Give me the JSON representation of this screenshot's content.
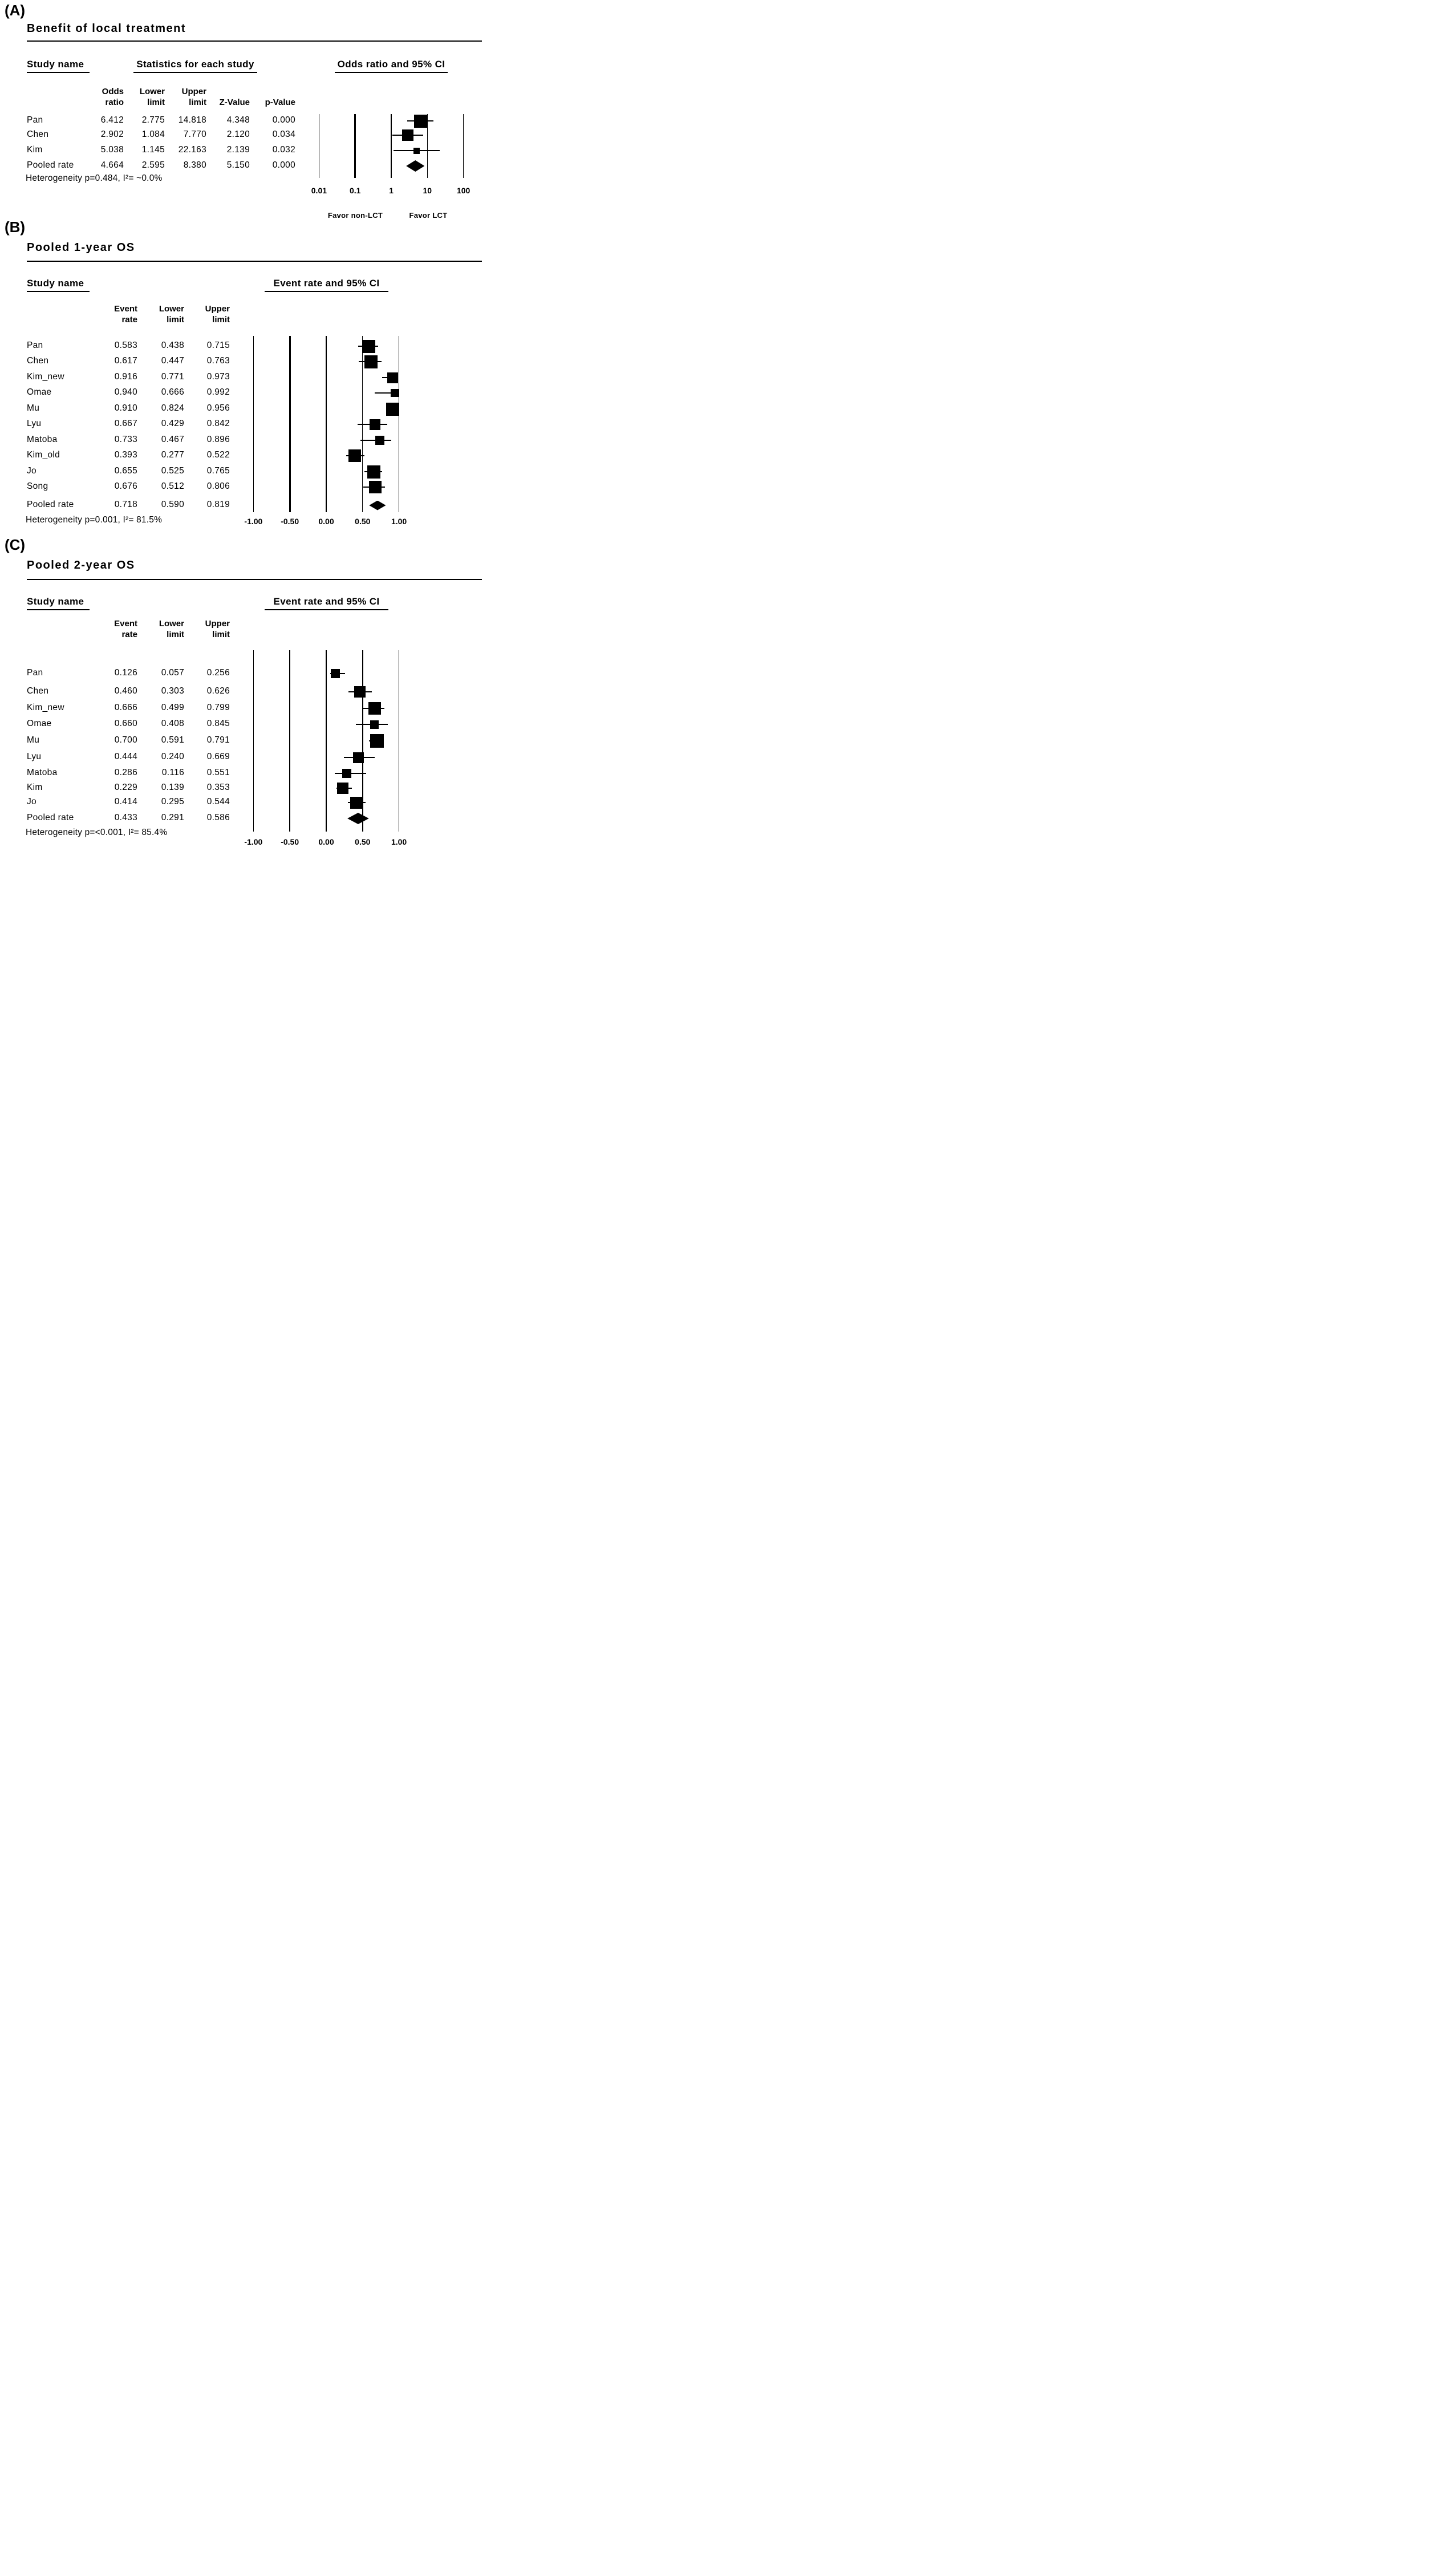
{
  "page": {
    "background": "#ffffff",
    "text_color": "#000000"
  },
  "chart_data": [
    {
      "type": "forest",
      "panel_label": "(A)",
      "title": "Benefit of local treatment",
      "study_header": "Study name",
      "stats_header": "Statistics for each study",
      "plot_header": "Odds ratio and 95% CI",
      "col_labels": [
        [
          "Odds",
          "ratio"
        ],
        [
          "Lower",
          "limit"
        ],
        [
          "Upper",
          "limit"
        ],
        [
          "",
          "Z-Value"
        ],
        [
          "",
          "p-Value"
        ]
      ],
      "axis": {
        "scale": "log",
        "min": 0.01,
        "max": 100
      },
      "xticks": [
        0.01,
        0.1,
        1,
        10,
        100
      ],
      "xtick_labels": [
        "0.01",
        "0.1",
        "1",
        "10",
        "100"
      ],
      "favor_labels": [
        "Favor non-LCT",
        "Favor LCT"
      ],
      "heterogeneity": "Heterogeneity p=0.484, I²= ~0.0%",
      "studies": [
        {
          "name": "Pan",
          "est": 6.412,
          "lo": 2.775,
          "hi": 14.818,
          "cells": [
            "6.412",
            "2.775",
            "14.818",
            "4.348",
            "0.000"
          ],
          "marker": "square",
          "size": 23
        },
        {
          "name": "Chen",
          "est": 2.902,
          "lo": 1.084,
          "hi": 7.77,
          "cells": [
            "2.902",
            "1.084",
            "7.770",
            "2.120",
            "0.034"
          ],
          "marker": "square",
          "size": 20
        },
        {
          "name": "Kim",
          "est": 5.038,
          "lo": 1.145,
          "hi": 22.163,
          "cells": [
            "5.038",
            "1.145",
            "22.163",
            "2.139",
            "0.032"
          ],
          "marker": "square",
          "size": 11
        },
        {
          "name": "Pooled rate",
          "est": 4.664,
          "lo": 2.595,
          "hi": 8.38,
          "cells": [
            "4.664",
            "2.595",
            "8.380",
            "5.150",
            "0.000"
          ],
          "marker": "diamond",
          "size": 20
        }
      ]
    },
    {
      "type": "forest",
      "panel_label": "(B)",
      "title": "Pooled 1-year OS",
      "study_header": "Study name",
      "plot_header": "Event rate and 95% CI",
      "col_labels": [
        [
          "Event",
          "rate"
        ],
        [
          "Lower",
          "limit"
        ],
        [
          "Upper",
          "limit"
        ]
      ],
      "axis": {
        "scale": "linear",
        "min": -1,
        "max": 1
      },
      "xticks": [
        -1,
        -0.5,
        0,
        0.5,
        1
      ],
      "xtick_labels": [
        "-1.00",
        "-0.50",
        "0.00",
        "0.50",
        "1.00"
      ],
      "heterogeneity": "Heterogeneity p=0.001, I²= 81.5%",
      "studies": [
        {
          "name": "Pan",
          "est": 0.583,
          "lo": 0.438,
          "hi": 0.715,
          "cells": [
            "0.583",
            "0.438",
            "0.715"
          ],
          "marker": "square",
          "size": 23
        },
        {
          "name": "Chen",
          "est": 0.617,
          "lo": 0.447,
          "hi": 0.763,
          "cells": [
            "0.617",
            "0.447",
            "0.763"
          ],
          "marker": "square",
          "size": 23
        },
        {
          "name": "Kim_new",
          "est": 0.916,
          "lo": 0.771,
          "hi": 0.973,
          "cells": [
            "0.916",
            "0.771",
            "0.973"
          ],
          "marker": "square",
          "size": 19
        },
        {
          "name": "Omae",
          "est": 0.94,
          "lo": 0.666,
          "hi": 0.992,
          "cells": [
            "0.940",
            "0.666",
            "0.992"
          ],
          "marker": "square",
          "size": 14
        },
        {
          "name": "Mu",
          "est": 0.91,
          "lo": 0.824,
          "hi": 0.956,
          "cells": [
            "0.910",
            "0.824",
            "0.956"
          ],
          "marker": "square",
          "size": 23
        },
        {
          "name": "Lyu",
          "est": 0.667,
          "lo": 0.429,
          "hi": 0.842,
          "cells": [
            "0.667",
            "0.429",
            "0.842"
          ],
          "marker": "square",
          "size": 19
        },
        {
          "name": "Matoba",
          "est": 0.733,
          "lo": 0.467,
          "hi": 0.896,
          "cells": [
            "0.733",
            "0.467",
            "0.896"
          ],
          "marker": "square",
          "size": 16
        },
        {
          "name": "Kim_old",
          "est": 0.393,
          "lo": 0.277,
          "hi": 0.522,
          "cells": [
            "0.393",
            "0.277",
            "0.522"
          ],
          "marker": "square",
          "size": 22
        },
        {
          "name": "Jo",
          "est": 0.655,
          "lo": 0.525,
          "hi": 0.765,
          "cells": [
            "0.655",
            "0.525",
            "0.765"
          ],
          "marker": "square",
          "size": 23
        },
        {
          "name": "Song",
          "est": 0.676,
          "lo": 0.512,
          "hi": 0.806,
          "cells": [
            "0.676",
            "0.512",
            "0.806"
          ],
          "marker": "square",
          "size": 22
        },
        {
          "name": "Pooled rate",
          "est": 0.718,
          "lo": 0.59,
          "hi": 0.819,
          "cells": [
            "0.718",
            "0.590",
            "0.819"
          ],
          "marker": "diamond",
          "size": 17
        }
      ]
    },
    {
      "type": "forest",
      "panel_label": "(C)",
      "title": "Pooled 2-year OS",
      "study_header": "Study name",
      "plot_header": "Event rate and 95% CI",
      "col_labels": [
        [
          "Event",
          "rate"
        ],
        [
          "Lower",
          "limit"
        ],
        [
          "Upper",
          "limit"
        ]
      ],
      "axis": {
        "scale": "linear",
        "min": -1,
        "max": 1
      },
      "xticks": [
        -1,
        -0.5,
        0,
        0.5,
        1
      ],
      "xtick_labels": [
        "-1.00",
        "-0.50",
        "0.00",
        "0.50",
        "1.00"
      ],
      "heterogeneity": "Heterogeneity p=<0.001, I²= 85.4%",
      "studies": [
        {
          "name": "Pan",
          "est": 0.126,
          "lo": 0.057,
          "hi": 0.256,
          "cells": [
            "0.126",
            "0.057",
            "0.256"
          ],
          "marker": "square",
          "size": 16
        },
        {
          "name": "Chen",
          "est": 0.46,
          "lo": 0.303,
          "hi": 0.626,
          "cells": [
            "0.460",
            "0.303",
            "0.626"
          ],
          "marker": "square",
          "size": 20
        },
        {
          "name": "Kim_new",
          "est": 0.666,
          "lo": 0.499,
          "hi": 0.799,
          "cells": [
            "0.666",
            "0.499",
            "0.799"
          ],
          "marker": "square",
          "size": 22
        },
        {
          "name": "Omae",
          "est": 0.66,
          "lo": 0.408,
          "hi": 0.845,
          "cells": [
            "0.660",
            "0.408",
            "0.845"
          ],
          "marker": "square",
          "size": 15
        },
        {
          "name": "Mu",
          "est": 0.7,
          "lo": 0.591,
          "hi": 0.791,
          "cells": [
            "0.700",
            "0.591",
            "0.791"
          ],
          "marker": "square",
          "size": 24
        },
        {
          "name": "Lyu",
          "est": 0.444,
          "lo": 0.24,
          "hi": 0.669,
          "cells": [
            "0.444",
            "0.240",
            "0.669"
          ],
          "marker": "square",
          "size": 19
        },
        {
          "name": "Matoba",
          "est": 0.286,
          "lo": 0.116,
          "hi": 0.551,
          "cells": [
            "0.286",
            "0.116",
            "0.551"
          ],
          "marker": "square",
          "size": 16
        },
        {
          "name": "Kim",
          "est": 0.229,
          "lo": 0.139,
          "hi": 0.353,
          "cells": [
            "0.229",
            "0.139",
            "0.353"
          ],
          "marker": "square",
          "size": 20
        },
        {
          "name": "Jo",
          "est": 0.414,
          "lo": 0.295,
          "hi": 0.544,
          "cells": [
            "0.414",
            "0.295",
            "0.544"
          ],
          "marker": "square",
          "size": 21
        },
        {
          "name": "Pooled rate",
          "est": 0.433,
          "lo": 0.291,
          "hi": 0.586,
          "cells": [
            "0.433",
            "0.291",
            "0.586"
          ],
          "marker": "diamond",
          "size": 20
        }
      ]
    }
  ]
}
